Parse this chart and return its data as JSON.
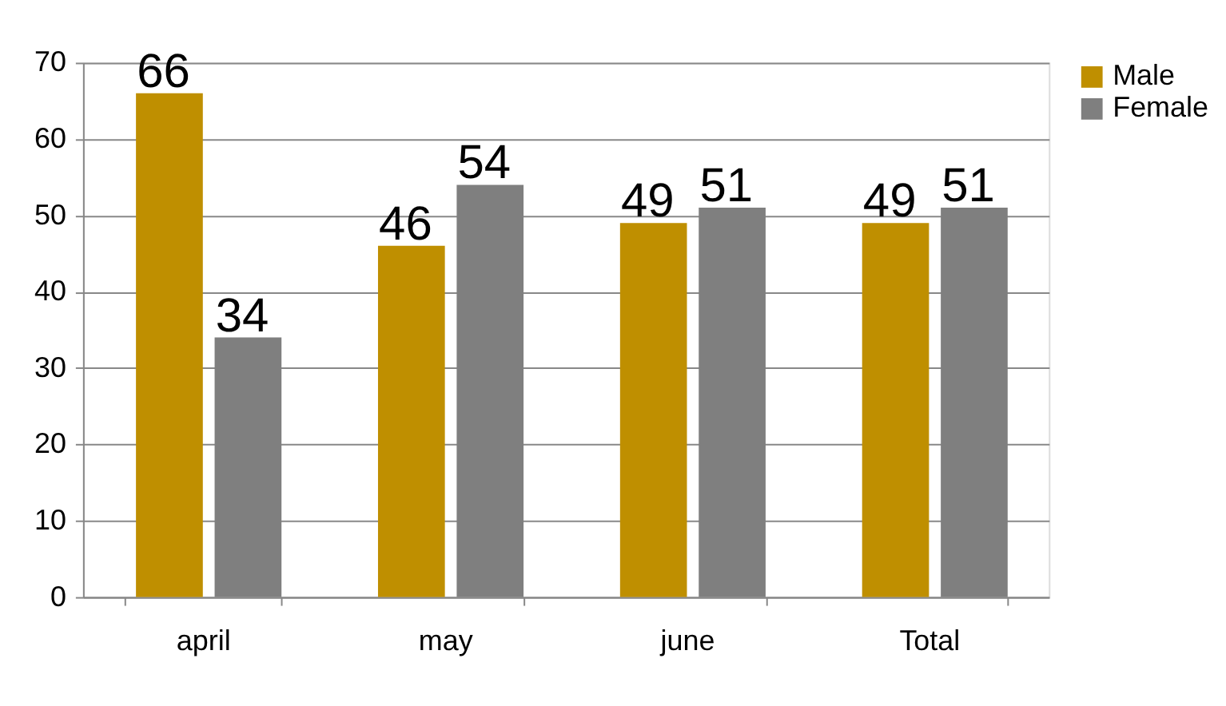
{
  "chart_data": {
    "type": "bar",
    "categories": [
      "april",
      "may",
      "june",
      "Total"
    ],
    "series": [
      {
        "name": "Male",
        "color": "#bf8f00",
        "values": [
          66,
          46,
          49,
          49
        ]
      },
      {
        "name": "Female",
        "color": "#7f7f7f",
        "values": [
          34,
          54,
          51,
          51
        ]
      }
    ],
    "ylim": [
      0,
      70
    ],
    "yticks": [
      0,
      10,
      20,
      30,
      40,
      50,
      60,
      70
    ],
    "grid": "y",
    "legend": "right",
    "data_labels": true
  }
}
